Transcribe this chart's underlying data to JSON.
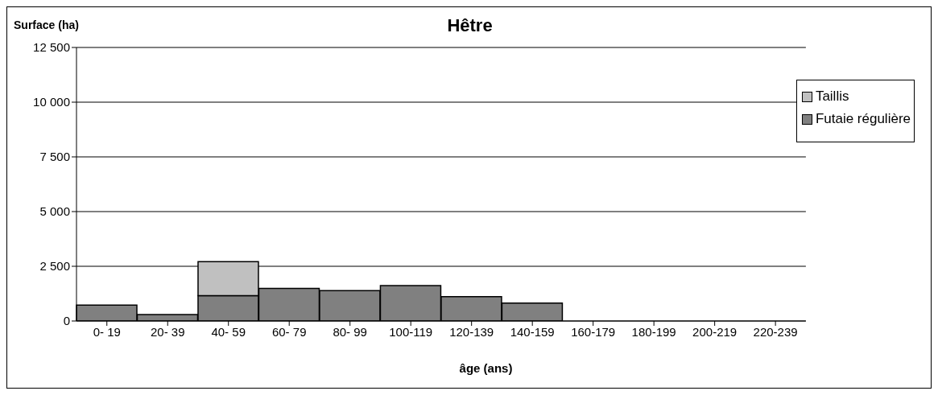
{
  "chart_data": {
    "type": "bar",
    "title": "Hêtre",
    "xlabel": "âge (ans)",
    "ylabel": "Surface (ha)",
    "categories": [
      "0- 19",
      "20- 39",
      "40- 59",
      "60- 79",
      "80- 99",
      "100-119",
      "120-139",
      "140-159",
      "160-179",
      "180-199",
      "200-219",
      "220-239"
    ],
    "stacked": true,
    "series": [
      {
        "name": "Futaie régulière",
        "color": "#808080",
        "values": [
          730,
          290,
          1160,
          1490,
          1390,
          1620,
          1110,
          820,
          0,
          0,
          0,
          0
        ]
      },
      {
        "name": "Taillis",
        "color": "#c0c0c0",
        "values": [
          0,
          0,
          1550,
          0,
          0,
          0,
          0,
          0,
          0,
          0,
          0,
          0
        ]
      }
    ],
    "ylim": [
      0,
      12500
    ],
    "yticks": [
      0,
      {
        "value": 2500,
        "label": "2 500"
      },
      {
        "value": 5000,
        "label": "5 000"
      },
      {
        "value": 7500,
        "label": "7 500"
      },
      {
        "value": 10000,
        "label": "10 000"
      },
      {
        "value": 12500,
        "label": "12 500"
      }
    ],
    "grid": "y",
    "legend": "top right"
  }
}
